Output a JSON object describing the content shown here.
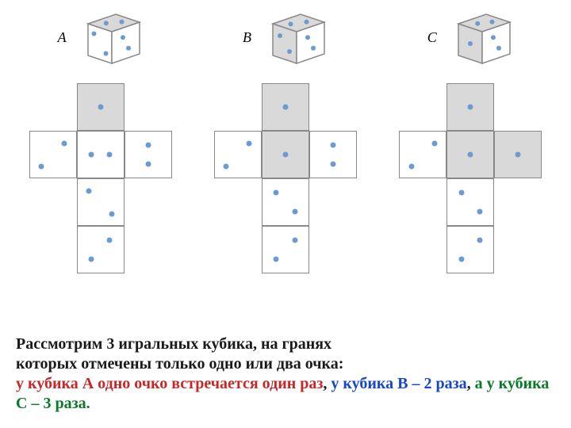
{
  "cell_size": 60,
  "dot_color": "#6b9bd1",
  "shade_color": "#d9d9d9",
  "border_color": "#888888",
  "background": "#ffffff",
  "caption": {
    "line1": {
      "text": "Рассмотрим 3 игральных кубика, на гранях",
      "color": "#1a1a1a"
    },
    "line2": {
      "text": "которых отмечены только одно или два очка:",
      "color": "#1a1a1a"
    },
    "partA": {
      "text": "у кубика А одно очко встречается один раз",
      "color": "#c62828"
    },
    "sep1": {
      "text": ", ",
      "color": "#1a1a1a"
    },
    "partB": {
      "text": "у кубика В – 2 раза",
      "color": "#1548c7"
    },
    "sep2": {
      "text": ", ",
      "color": "#1a1a1a"
    },
    "partC": {
      "text": "а у кубика С – 3 раза.",
      "color": "#0a7a2a"
    },
    "fontsize": 20
  },
  "columns": [
    {
      "label": "A",
      "cube": {
        "top": {
          "shaded": true,
          "dots": [
            [
              0.35,
              0.35
            ],
            [
              0.7,
              0.6
            ]
          ]
        },
        "front": {
          "shaded": false,
          "dots": [
            [
              0.25,
              0.25
            ],
            [
              0.75,
              0.75
            ]
          ]
        },
        "right": {
          "shaded": false,
          "dots": [
            [
              0.4,
              0.3
            ],
            [
              0.6,
              0.7
            ]
          ]
        }
      },
      "net": [
        {
          "row": 0,
          "col": 1,
          "shaded": true,
          "dots": [
            [
              0.5,
              0.5
            ]
          ]
        },
        {
          "row": 1,
          "col": 0,
          "shaded": false,
          "dots": [
            [
              0.25,
              0.75
            ],
            [
              0.75,
              0.25
            ]
          ]
        },
        {
          "row": 1,
          "col": 1,
          "shaded": false,
          "dots": [
            [
              0.3,
              0.5
            ],
            [
              0.7,
              0.5
            ]
          ]
        },
        {
          "row": 1,
          "col": 2,
          "shaded": false,
          "dots": [
            [
              0.5,
              0.3
            ],
            [
              0.5,
              0.7
            ]
          ]
        },
        {
          "row": 2,
          "col": 1,
          "shaded": false,
          "dots": [
            [
              0.25,
              0.25
            ],
            [
              0.75,
              0.75
            ]
          ]
        },
        {
          "row": 3,
          "col": 1,
          "shaded": false,
          "dots": [
            [
              0.3,
              0.7
            ],
            [
              0.7,
              0.3
            ]
          ]
        }
      ]
    },
    {
      "label": "B",
      "cube": {
        "top": {
          "shaded": true,
          "dots": [
            [
              0.3,
              0.4
            ],
            [
              0.7,
              0.6
            ]
          ]
        },
        "front": {
          "shaded": true,
          "dots": [
            [
              0.3,
              0.3
            ],
            [
              0.7,
              0.7
            ]
          ]
        },
        "right": {
          "shaded": false,
          "dots": [
            [
              0.4,
              0.3
            ],
            [
              0.6,
              0.7
            ]
          ]
        }
      },
      "net": [
        {
          "row": 0,
          "col": 1,
          "shaded": true,
          "dots": [
            [
              0.5,
              0.5
            ]
          ]
        },
        {
          "row": 1,
          "col": 0,
          "shaded": false,
          "dots": [
            [
              0.25,
              0.75
            ],
            [
              0.75,
              0.25
            ]
          ]
        },
        {
          "row": 1,
          "col": 1,
          "shaded": true,
          "dots": [
            [
              0.5,
              0.5
            ]
          ]
        },
        {
          "row": 1,
          "col": 2,
          "shaded": false,
          "dots": [
            [
              0.5,
              0.3
            ],
            [
              0.5,
              0.7
            ]
          ]
        },
        {
          "row": 2,
          "col": 1,
          "shaded": false,
          "dots": [
            [
              0.3,
              0.3
            ],
            [
              0.7,
              0.7
            ]
          ]
        },
        {
          "row": 3,
          "col": 1,
          "shaded": false,
          "dots": [
            [
              0.3,
              0.7
            ],
            [
              0.7,
              0.3
            ]
          ]
        }
      ]
    },
    {
      "label": "C",
      "cube": {
        "top": {
          "shaded": true,
          "dots": [
            [
              0.35,
              0.4
            ],
            [
              0.7,
              0.6
            ]
          ]
        },
        "front": {
          "shaded": true,
          "dots": [
            [
              0.5,
              0.5
            ]
          ]
        },
        "right": {
          "shaded": false,
          "dots": [
            [
              0.4,
              0.3
            ],
            [
              0.6,
              0.7
            ]
          ]
        }
      },
      "net": [
        {
          "row": 0,
          "col": 1,
          "shaded": true,
          "dots": [
            [
              0.5,
              0.5
            ]
          ]
        },
        {
          "row": 1,
          "col": 0,
          "shaded": false,
          "dots": [
            [
              0.25,
              0.75
            ],
            [
              0.75,
              0.25
            ]
          ]
        },
        {
          "row": 1,
          "col": 1,
          "shaded": true,
          "dots": [
            [
              0.5,
              0.5
            ]
          ]
        },
        {
          "row": 1,
          "col": 2,
          "shaded": true,
          "dots": [
            [
              0.5,
              0.5
            ]
          ]
        },
        {
          "row": 2,
          "col": 1,
          "shaded": false,
          "dots": [
            [
              0.3,
              0.3
            ],
            [
              0.7,
              0.7
            ]
          ]
        },
        {
          "row": 3,
          "col": 1,
          "shaded": false,
          "dots": [
            [
              0.3,
              0.7
            ],
            [
              0.7,
              0.3
            ]
          ]
        }
      ]
    }
  ]
}
